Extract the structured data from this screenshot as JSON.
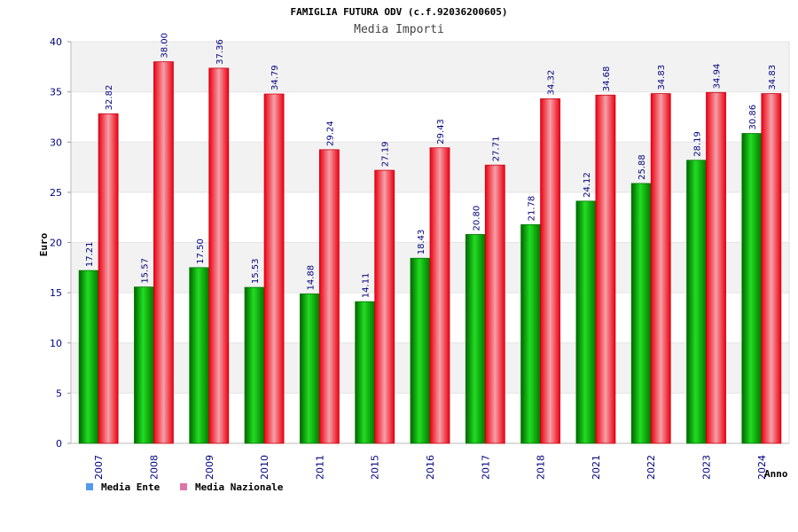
{
  "chart_data": {
    "type": "bar",
    "title": "FAMIGLIA FUTURA ODV (c.f.92036200605)",
    "subtitle": "Media Importi",
    "ylabel": "Euro",
    "xlabel": "Anno",
    "ylim": [
      0,
      40
    ],
    "yticks": [
      0,
      5,
      10,
      15,
      20,
      25,
      30,
      35,
      40
    ],
    "categories": [
      "2007",
      "2008",
      "2009",
      "2010",
      "2011",
      "2015",
      "2016",
      "2017",
      "2018",
      "2021",
      "2022",
      "2023",
      "2024"
    ],
    "series": [
      {
        "name": "Media Ente",
        "color": "#00bb00",
        "legend_color": "#5599ee",
        "values": [
          17.21,
          15.57,
          17.5,
          15.53,
          14.88,
          14.11,
          18.43,
          20.8,
          21.78,
          24.12,
          25.88,
          28.19,
          30.86
        ],
        "labels": [
          "17.21",
          "15.57",
          "17.50",
          "15.53",
          "14.88",
          "14.11",
          "18.43",
          "20.80",
          "21.78",
          "24.12",
          "25.88",
          "28.19",
          "30.86"
        ]
      },
      {
        "name": "Media Nazionale",
        "color": "#ee1122",
        "legend_color": "#dd77aa",
        "values": [
          32.82,
          38.0,
          37.36,
          34.79,
          29.24,
          27.19,
          29.43,
          27.71,
          34.32,
          34.68,
          34.83,
          34.94,
          34.83
        ],
        "labels": [
          "32.82",
          "38.00",
          "37.36",
          "34.79",
          "29.24",
          "27.19",
          "29.43",
          "27.71",
          "34.32",
          "34.68",
          "34.83",
          "34.94",
          "34.83"
        ]
      }
    ],
    "grid": true,
    "legend_position": "bottom-left"
  }
}
